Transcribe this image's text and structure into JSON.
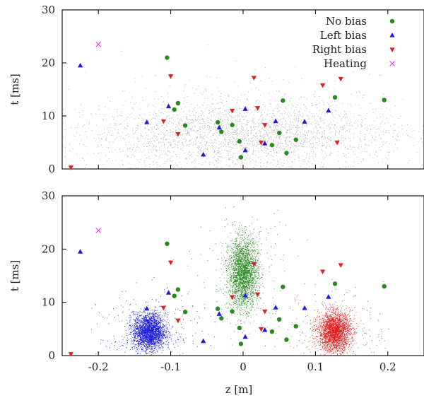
{
  "chart_data": [
    {
      "type": "scatter",
      "panel": "top",
      "xlabel": "",
      "ylabel": "t [ms]",
      "xlim": [
        -0.25,
        0.25
      ],
      "ylim": [
        0,
        30
      ],
      "xticks": [
        -0.2,
        -0.1,
        0,
        0.1,
        0.2
      ],
      "xtick_labels": [
        "",
        "",
        "",
        "",
        ""
      ],
      "yticks": [
        0,
        10,
        20,
        30
      ],
      "ytick_labels": [
        "0",
        "10",
        "20",
        "30"
      ],
      "grid": false,
      "legend_position": "top-right",
      "background_cloud": {
        "color": "#8c8c8c",
        "distribution": "broad band centred at z = 0, densest for t between 2 and 12 ms, spanning z from about -0.22 to 0.25"
      },
      "series": [
        {
          "name": "No bias",
          "marker": "circle",
          "color": "#2a8a22",
          "points": [
            [
              -0.105,
              21.0
            ],
            [
              -0.09,
              12.4
            ],
            [
              -0.095,
              11.2
            ],
            [
              -0.08,
              8.2
            ],
            [
              -0.035,
              8.8
            ],
            [
              -0.03,
              7.0
            ],
            [
              -0.015,
              8.3
            ],
            [
              -0.005,
              5.2
            ],
            [
              -0.003,
              2.2
            ],
            [
              0.04,
              4.5
            ],
            [
              0.05,
              6.8
            ],
            [
              0.055,
              12.9
            ],
            [
              0.06,
              3.0
            ],
            [
              0.073,
              5.5
            ],
            [
              0.127,
              13.5
            ],
            [
              0.195,
              13.0
            ]
          ]
        },
        {
          "name": "Left bias",
          "marker": "triangle-up",
          "color": "#1a1ae0",
          "points": [
            [
              -0.225,
              19.5
            ],
            [
              -0.133,
              8.8
            ],
            [
              -0.103,
              11.8
            ],
            [
              -0.055,
              2.7
            ],
            [
              -0.033,
              7.8
            ],
            [
              0.003,
              11.3
            ],
            [
              0.003,
              3.5
            ],
            [
              0.03,
              4.8
            ],
            [
              0.045,
              9.0
            ],
            [
              0.085,
              8.9
            ],
            [
              0.118,
              11.0
            ]
          ]
        },
        {
          "name": "Right bias",
          "marker": "triangle-down",
          "color": "#e02020",
          "points": [
            [
              -0.238,
              0.3
            ],
            [
              -0.1,
              17.5
            ],
            [
              -0.11,
              9.0
            ],
            [
              -0.09,
              6.6
            ],
            [
              -0.015,
              11.0
            ],
            [
              0.015,
              17.2
            ],
            [
              0.02,
              11.5
            ],
            [
              0.025,
              5.0
            ],
            [
              0.03,
              8.3
            ],
            [
              0.11,
              15.8
            ],
            [
              0.13,
              5.0
            ],
            [
              0.135,
              17.0
            ]
          ]
        },
        {
          "name": "Heating",
          "marker": "cross",
          "color": "#e83ce8",
          "points": [
            [
              -0.2,
              23.5
            ]
          ]
        }
      ]
    },
    {
      "type": "scatter",
      "panel": "bottom",
      "xlabel": "z [m]",
      "ylabel": "t [ms]",
      "xlim": [
        -0.25,
        0.25
      ],
      "ylim": [
        0,
        30
      ],
      "xticks": [
        -0.2,
        -0.1,
        0,
        0.1,
        0.2
      ],
      "xtick_labels": [
        "-0.2",
        "-0.1",
        "0",
        "0.1",
        "0.2"
      ],
      "yticks": [
        0,
        10,
        20,
        30
      ],
      "ytick_labels": [
        "0",
        "10",
        "20",
        "30"
      ],
      "grid": false,
      "clusters": [
        {
          "label": "No bias",
          "color": "#2a8a22",
          "center": [
            0.0,
            15.5
          ],
          "spread": [
            0.01,
            3.2
          ]
        },
        {
          "label": "Left bias",
          "color": "#1a1ae0",
          "center": [
            -0.13,
            4.5
          ],
          "spread": [
            0.011,
            1.7
          ]
        },
        {
          "label": "Right bias",
          "color": "#e02020",
          "center": [
            0.126,
            4.5
          ],
          "spread": [
            0.011,
            1.8
          ]
        }
      ],
      "series": [
        {
          "name": "No bias",
          "marker": "circle",
          "color": "#2a8a22",
          "points": [
            [
              -0.105,
              21.0
            ],
            [
              -0.09,
              12.4
            ],
            [
              -0.095,
              11.2
            ],
            [
              -0.08,
              8.2
            ],
            [
              -0.035,
              8.8
            ],
            [
              -0.03,
              7.0
            ],
            [
              -0.015,
              8.3
            ],
            [
              -0.005,
              5.2
            ],
            [
              -0.003,
              2.2
            ],
            [
              0.04,
              4.5
            ],
            [
              0.05,
              6.8
            ],
            [
              0.055,
              12.9
            ],
            [
              0.06,
              3.0
            ],
            [
              0.073,
              5.5
            ],
            [
              0.127,
              13.5
            ],
            [
              0.195,
              13.0
            ]
          ]
        },
        {
          "name": "Left bias",
          "marker": "triangle-up",
          "color": "#1a1ae0",
          "points": [
            [
              -0.225,
              19.5
            ],
            [
              -0.133,
              8.8
            ],
            [
              -0.103,
              11.8
            ],
            [
              -0.055,
              2.7
            ],
            [
              -0.033,
              7.8
            ],
            [
              0.003,
              11.3
            ],
            [
              0.003,
              3.5
            ],
            [
              0.03,
              4.8
            ],
            [
              0.045,
              9.0
            ],
            [
              0.085,
              8.9
            ],
            [
              0.118,
              11.0
            ]
          ]
        },
        {
          "name": "Right bias",
          "marker": "triangle-down",
          "color": "#e02020",
          "points": [
            [
              -0.238,
              0.3
            ],
            [
              -0.1,
              17.5
            ],
            [
              -0.11,
              9.0
            ],
            [
              -0.09,
              6.6
            ],
            [
              -0.015,
              11.0
            ],
            [
              0.015,
              17.2
            ],
            [
              0.02,
              11.5
            ],
            [
              0.025,
              5.0
            ],
            [
              0.03,
              8.3
            ],
            [
              0.11,
              15.8
            ],
            [
              0.13,
              5.0
            ],
            [
              0.135,
              17.0
            ]
          ]
        },
        {
          "name": "Heating",
          "marker": "cross",
          "color": "#e83ce8",
          "points": [
            [
              -0.2,
              23.5
            ]
          ]
        }
      ]
    }
  ]
}
